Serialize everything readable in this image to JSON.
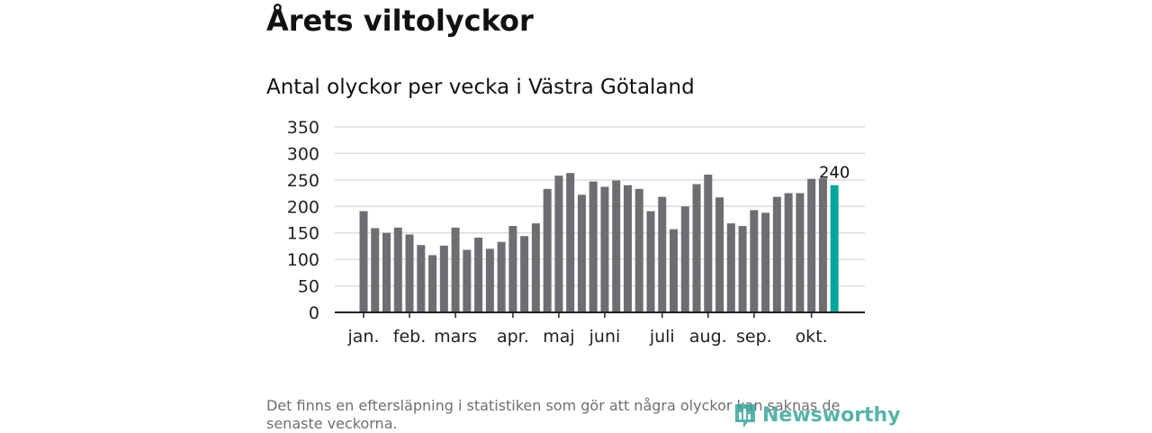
{
  "title": "Årets viltolyckor",
  "subtitle": "Antal olyckor per vecka i Västra Götaland",
  "note": "Det finns en eftersläpning i statistiken som gör att några olyckor kan saknas de senaste veckorna.",
  "logo": "Newsworthy",
  "colors": {
    "bar": "#6e6d72",
    "highlight": "#00a69c",
    "grid": "#dddddd"
  },
  "chart_data": {
    "type": "bar",
    "title": "Antal olyckor per vecka i Västra Götaland",
    "xlabel": "",
    "ylabel": "",
    "ylim": [
      0,
      350
    ],
    "yticks": [
      0,
      50,
      100,
      150,
      200,
      250,
      300,
      350
    ],
    "values": [
      191,
      159,
      150,
      160,
      147,
      127,
      108,
      126,
      160,
      118,
      141,
      120,
      133,
      163,
      144,
      168,
      233,
      258,
      263,
      222,
      247,
      237,
      249,
      240,
      233,
      191,
      218,
      157,
      200,
      242,
      260,
      217,
      168,
      163,
      193,
      188,
      218,
      225,
      225,
      252,
      253,
      240
    ],
    "highlight_last": true,
    "last_label": "240",
    "month_ticks": [
      {
        "label": "jan.",
        "bar": 0
      },
      {
        "label": "feb.",
        "bar": 4
      },
      {
        "label": "mars",
        "bar": 8
      },
      {
        "label": "apr.",
        "bar": 13
      },
      {
        "label": "maj",
        "bar": 17
      },
      {
        "label": "juni",
        "bar": 21
      },
      {
        "label": "juli",
        "bar": 26
      },
      {
        "label": "aug.",
        "bar": 30
      },
      {
        "label": "sep.",
        "bar": 34
      },
      {
        "label": "okt.",
        "bar": 39
      }
    ],
    "grid": true
  }
}
